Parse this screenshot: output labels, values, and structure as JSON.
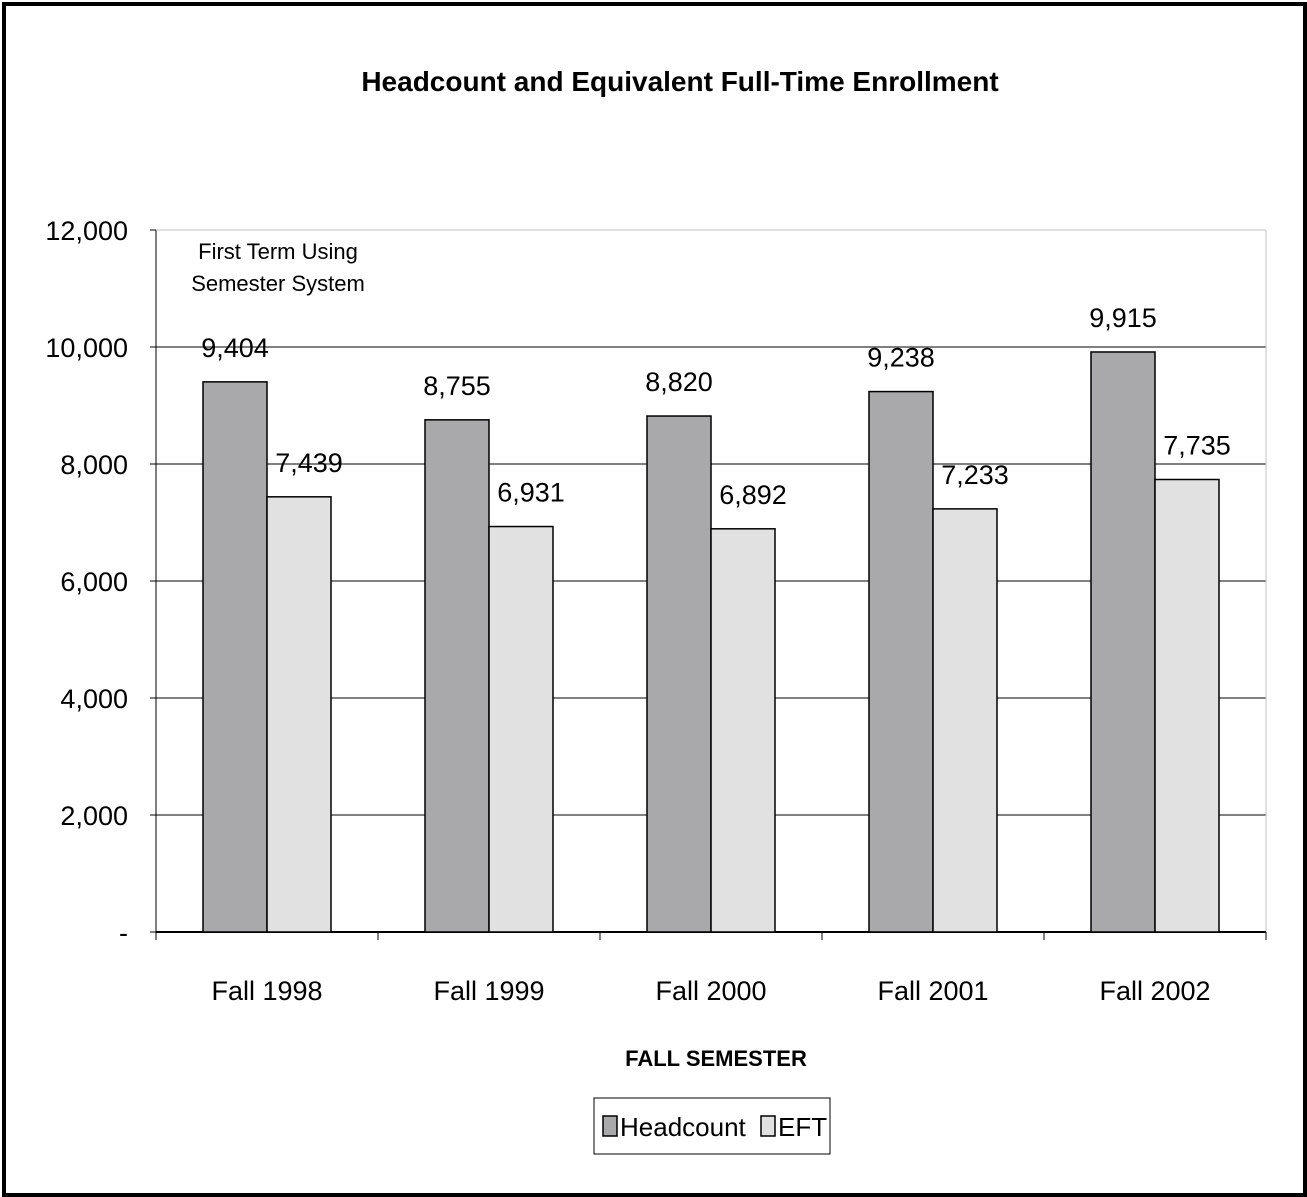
{
  "chart_data": {
    "type": "bar",
    "title": "Headcount and Equivalent Full-Time Enrollment",
    "xlabel": "FALL SEMESTER",
    "ylabel": "",
    "categories": [
      "Fall 1998",
      "Fall 1999",
      "Fall 2000",
      "Fall 2001",
      "Fall 2002"
    ],
    "series": [
      {
        "name": "Headcount",
        "values": [
          9404,
          8755,
          8820,
          9238,
          9915
        ],
        "labels": [
          "9,404",
          "8,755",
          "8,820",
          "9,238",
          "9,915"
        ],
        "color": "#a9a9ab"
      },
      {
        "name": "EFT",
        "values": [
          7439,
          6931,
          6892,
          7233,
          7735
        ],
        "labels": [
          "7,439",
          "6,931",
          "6,892",
          "7,233",
          "7,735"
        ],
        "color": "#e1e1e2"
      }
    ],
    "ylim": [
      0,
      12000
    ],
    "yticks": [
      0,
      2000,
      4000,
      6000,
      8000,
      10000,
      12000
    ],
    "ytick_labels": [
      "-",
      "2,000",
      "4,000",
      "6,000",
      "8,000",
      "10,000",
      "12,000"
    ],
    "grid": true,
    "legend": "bottom-center",
    "annotation": [
      "First Term Using",
      "Semester System"
    ]
  }
}
